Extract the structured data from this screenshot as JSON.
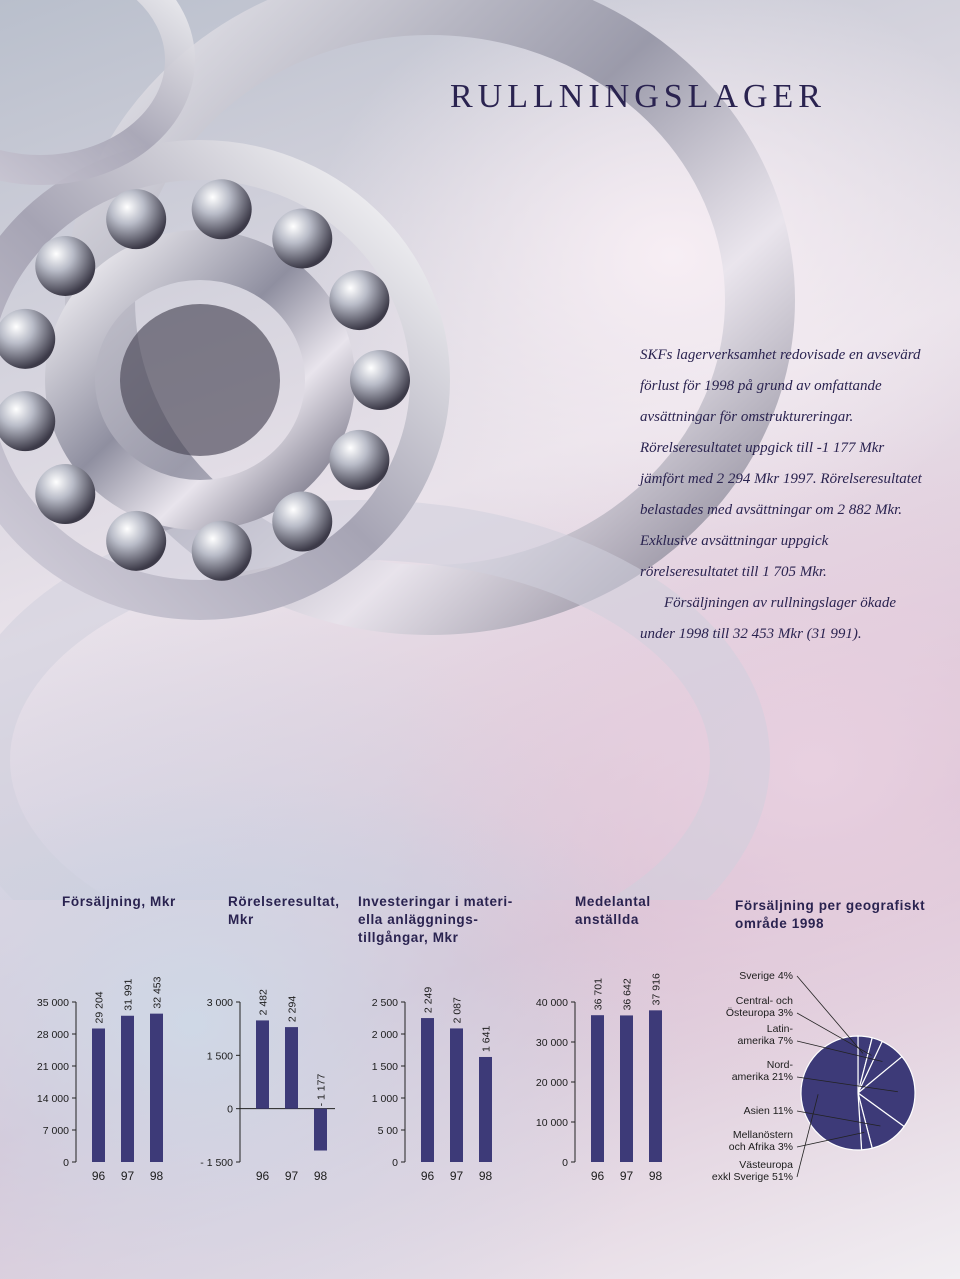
{
  "page": {
    "title": "RULLNINGSLAGER",
    "intro_p1": "SKFs lagerverksamhet redovisade en avsevärd förlust för 1998 på grund av omfattande avsättningar för omstruktureringar. Rörelseresultatet uppgick till -1 177 Mkr jämfört med 2 294 Mkr 1997. Rörelseresultatet belastades med avsättningar om 2 882 Mkr. Exklusive avsättningar uppgick rörelseresultatet till 1 705 Mkr.",
    "intro_p2": "Försäljningen av rullningslager ökade under 1998 till 32 453 Mkr (31 991)."
  },
  "colors": {
    "bar": "#3d3a78",
    "text": "#2a2350"
  },
  "chart_data": [
    {
      "type": "bar",
      "title": "Försäljning, Mkr",
      "categories": [
        "96",
        "97",
        "98"
      ],
      "values": [
        29204,
        31991,
        32453
      ],
      "value_labels": [
        "29 204",
        "31 991",
        "32 453"
      ],
      "ylim": [
        0,
        35000
      ],
      "yticks": [
        0,
        7000,
        14000,
        21000,
        28000,
        35000
      ],
      "ytick_labels": [
        "0",
        "7 000",
        "14 000",
        "21 000",
        "28 000",
        "35 000"
      ]
    },
    {
      "type": "bar",
      "title": "Rörelseresultat, Mkr",
      "categories": [
        "96",
        "97",
        "98"
      ],
      "values": [
        2482,
        2294,
        -1177
      ],
      "value_labels": [
        "2 482",
        "2 294",
        "- 1 177"
      ],
      "ylim": [
        -1500,
        3000
      ],
      "yticks": [
        -1500,
        0,
        1500,
        3000
      ],
      "ytick_labels": [
        "- 1 500",
        "0",
        "1 500",
        "3 000"
      ]
    },
    {
      "type": "bar",
      "title": "Investeringar i materiella anläggningstillgångar, Mkr",
      "categories": [
        "96",
        "97",
        "98"
      ],
      "values": [
        2249,
        2087,
        1641
      ],
      "value_labels": [
        "2 249",
        "2 087",
        "1 641"
      ],
      "ylim": [
        0,
        2500
      ],
      "yticks": [
        0,
        500,
        1000,
        1500,
        2000,
        2500
      ],
      "ytick_labels": [
        "0",
        "5 00",
        "1 000",
        "1 500",
        "2 000",
        "2 500"
      ]
    },
    {
      "type": "bar",
      "title": "Medelantal anställda",
      "categories": [
        "96",
        "97",
        "98"
      ],
      "values": [
        36701,
        36642,
        37916
      ],
      "value_labels": [
        "36 701",
        "36 642",
        "37 916"
      ],
      "ylim": [
        0,
        40000
      ],
      "yticks": [
        0,
        10000,
        20000,
        30000,
        40000
      ],
      "ytick_labels": [
        "0",
        "10 000",
        "20 000",
        "30 000",
        "40 000"
      ]
    },
    {
      "type": "pie",
      "title": "Försäljning per geografiskt område 1998",
      "slices": [
        {
          "label": "Sverige 4%",
          "value": 4
        },
        {
          "label": "Central- och Östeuropa 3%",
          "value": 3
        },
        {
          "label": "Latin-amerika 7%",
          "value": 7
        },
        {
          "label": "Nord-amerika 21%",
          "value": 21
        },
        {
          "label": "Asien 11%",
          "value": 11
        },
        {
          "label": "Mellanöstern och Afrika 3%",
          "value": 3
        },
        {
          "label": "Västeuropa exkl Sverige 51%",
          "value": 51
        }
      ]
    }
  ]
}
